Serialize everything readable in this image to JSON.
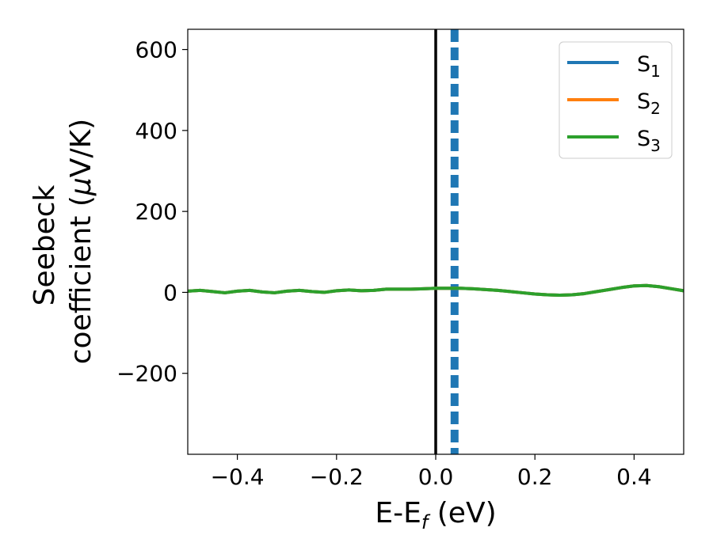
{
  "chart_data": {
    "type": "line",
    "xlabel": {
      "main": "E-E",
      "sub": "f",
      "tail": " (eV)"
    },
    "ylabel": {
      "line1": "Seebeck",
      "line2_pre": "coefficient  (",
      "mu": "μ",
      "line2_post": "V/K)"
    },
    "xlim": [
      -0.5,
      0.5
    ],
    "ylim": [
      -400,
      650
    ],
    "xticks": [
      -0.4,
      -0.2,
      0.0,
      0.2,
      0.4
    ],
    "xtick_labels": [
      "−0.4",
      "−0.2",
      "0.0",
      "0.2",
      "0.4"
    ],
    "yticks": [
      -200,
      0,
      200,
      400,
      600
    ],
    "ytick_labels": [
      "−200",
      "0",
      "200",
      "400",
      "600"
    ],
    "grid": false,
    "legend_position": "top-right",
    "series": [
      {
        "name": "S",
        "sub": "1",
        "color": "#1f77b4",
        "x": [
          -0.5,
          -0.475,
          -0.45,
          -0.425,
          -0.4,
          -0.375,
          -0.35,
          -0.325,
          -0.3,
          -0.275,
          -0.25,
          -0.225,
          -0.2,
          -0.175,
          -0.15,
          -0.125,
          -0.1,
          -0.075,
          -0.05,
          -0.025,
          0.0,
          0.025,
          0.05,
          0.075,
          0.1,
          0.125,
          0.15,
          0.175,
          0.2,
          0.225,
          0.25,
          0.275,
          0.3,
          0.325,
          0.35,
          0.375,
          0.4,
          0.425,
          0.45,
          0.475,
          0.5
        ],
        "y": [
          3,
          5,
          2,
          -1,
          3,
          5,
          1,
          -1,
          3,
          5,
          2,
          0,
          4,
          6,
          4,
          5,
          8,
          8,
          8,
          9,
          10,
          10,
          10,
          9,
          7,
          5,
          2,
          -1,
          -4,
          -6,
          -7,
          -6,
          -3,
          2,
          7,
          12,
          16,
          17,
          14,
          9,
          4
        ]
      },
      {
        "name": "S",
        "sub": "2",
        "color": "#ff7f0e",
        "x": [
          -0.5,
          -0.475,
          -0.45,
          -0.425,
          -0.4,
          -0.375,
          -0.35,
          -0.325,
          -0.3,
          -0.275,
          -0.25,
          -0.225,
          -0.2,
          -0.175,
          -0.15,
          -0.125,
          -0.1,
          -0.075,
          -0.05,
          -0.025,
          0.0,
          0.025,
          0.05,
          0.075,
          0.1,
          0.125,
          0.15,
          0.175,
          0.2,
          0.225,
          0.25,
          0.275,
          0.3,
          0.325,
          0.35,
          0.375,
          0.4,
          0.425,
          0.45,
          0.475,
          0.5
        ],
        "y": [
          3,
          5,
          2,
          -1,
          3,
          5,
          1,
          -1,
          3,
          5,
          2,
          0,
          4,
          6,
          4,
          5,
          8,
          8,
          8,
          9,
          10,
          10,
          10,
          9,
          7,
          5,
          2,
          -1,
          -4,
          -6,
          -7,
          -6,
          -3,
          2,
          7,
          12,
          16,
          17,
          14,
          9,
          4
        ]
      },
      {
        "name": "S",
        "sub": "3",
        "color": "#2ca02c",
        "x": [
          -0.5,
          -0.475,
          -0.45,
          -0.425,
          -0.4,
          -0.375,
          -0.35,
          -0.325,
          -0.3,
          -0.275,
          -0.25,
          -0.225,
          -0.2,
          -0.175,
          -0.15,
          -0.125,
          -0.1,
          -0.075,
          -0.05,
          -0.025,
          0.0,
          0.025,
          0.05,
          0.075,
          0.1,
          0.125,
          0.15,
          0.175,
          0.2,
          0.225,
          0.25,
          0.275,
          0.3,
          0.325,
          0.35,
          0.375,
          0.4,
          0.425,
          0.45,
          0.475,
          0.5
        ],
        "y": [
          3,
          5,
          2,
          -1,
          3,
          5,
          1,
          -1,
          3,
          5,
          2,
          0,
          4,
          6,
          4,
          5,
          8,
          8,
          8,
          9,
          10,
          10,
          10,
          9,
          7,
          5,
          2,
          -1,
          -4,
          -6,
          -7,
          -6,
          -3,
          2,
          7,
          12,
          16,
          17,
          14,
          9,
          4
        ]
      }
    ],
    "vlines": [
      {
        "x": 0.0,
        "color": "#000000",
        "style": "solid"
      },
      {
        "x": 0.038,
        "color": "#1f77b4",
        "style": "dashed"
      }
    ]
  }
}
